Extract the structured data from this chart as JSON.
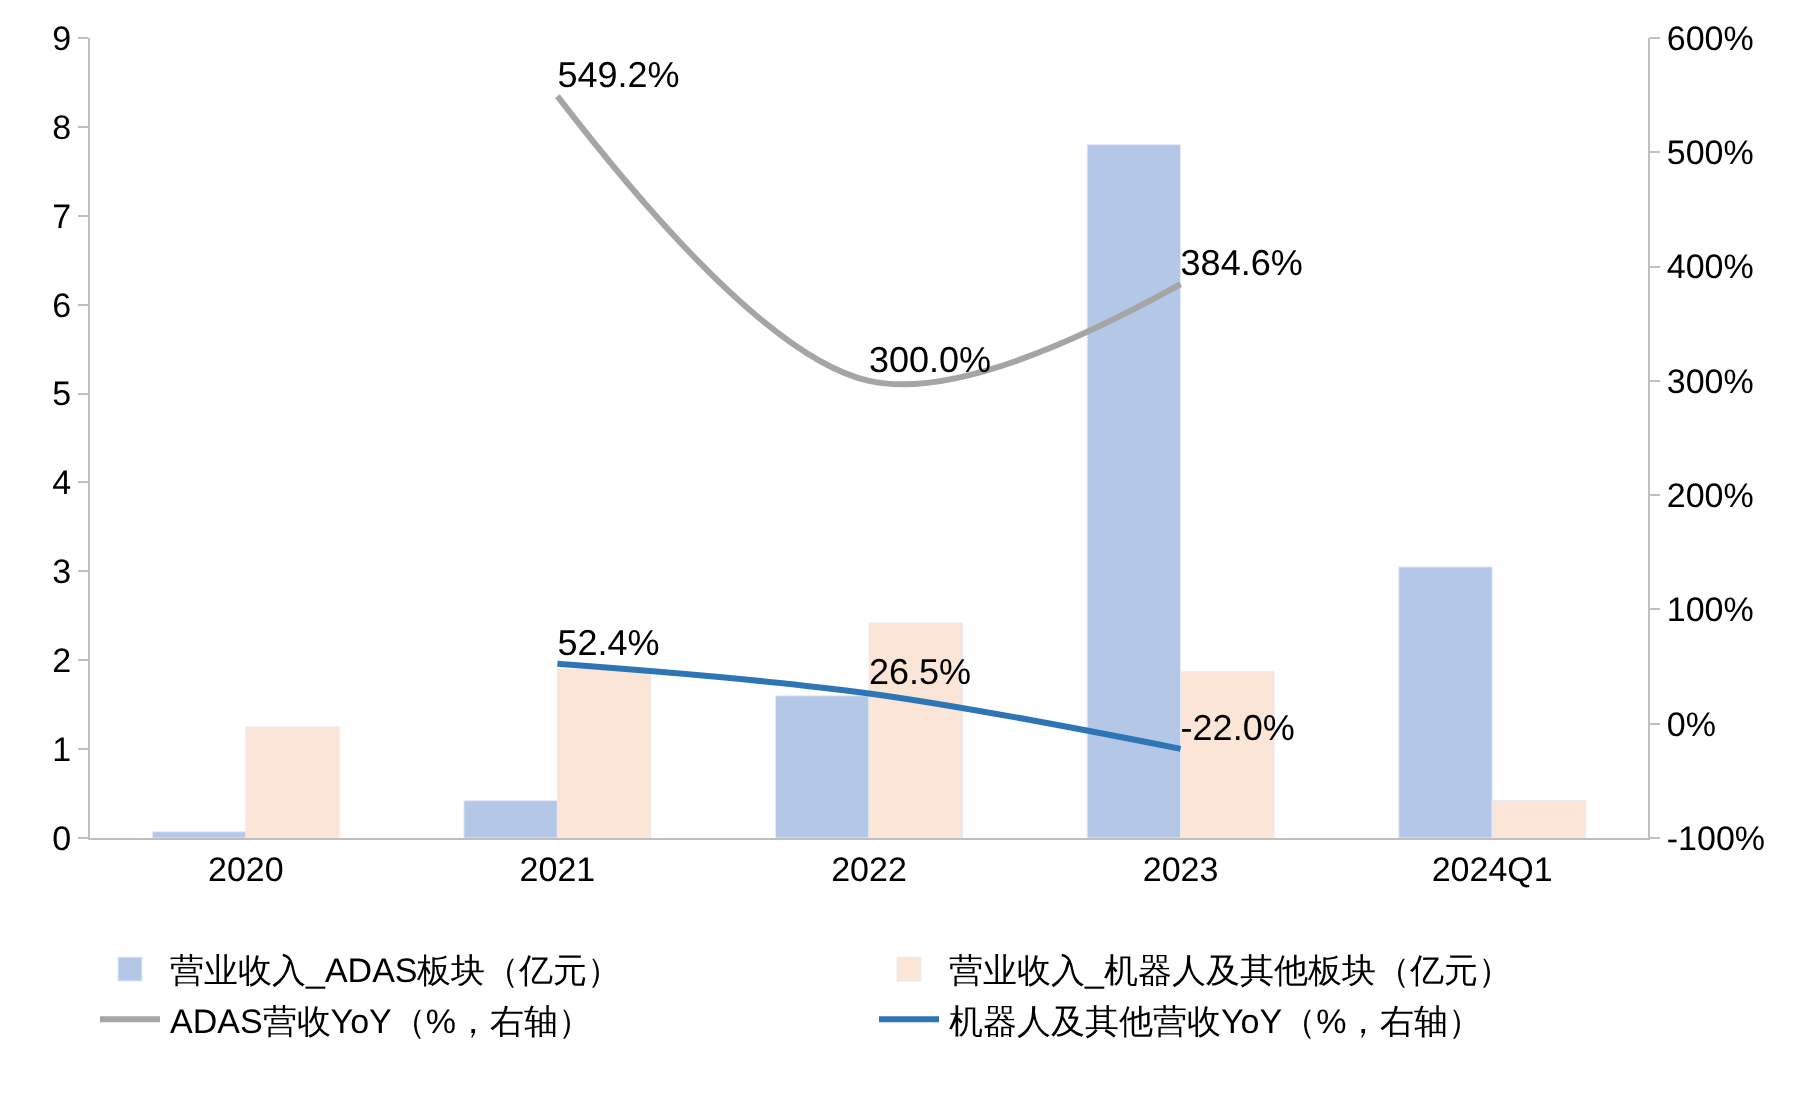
{
  "chart_data": {
    "type": "bar",
    "categories": [
      "2020",
      "2021",
      "2022",
      "2023",
      "2024Q1"
    ],
    "series": [
      {
        "name": "营业收入_ADAS板块（亿元）",
        "color": "#b4c7e7",
        "values": [
          0.07,
          0.42,
          1.6,
          7.8,
          3.05
        ]
      },
      {
        "name": "营业收入_机器人及其他板块（亿元）",
        "color": "#fbe5d6",
        "values": [
          1.25,
          1.9,
          2.42,
          1.87,
          0.42
        ]
      },
      {
        "name": "ADAS营收YoY（%，右轴）",
        "type": "line",
        "axis": "y2",
        "color": "#a5a5a5",
        "values": [
          null,
          549.2,
          300.0,
          384.6,
          null
        ],
        "value_labels": [
          null,
          "549.2%",
          "300.0%",
          "384.6%",
          null
        ]
      },
      {
        "name": "机器人及其他营收YoY（%，右轴）",
        "type": "line",
        "axis": "y2",
        "color": "#2e75b6",
        "values": [
          null,
          52.4,
          26.5,
          -22.0,
          null
        ],
        "value_labels": [
          null,
          "52.4%",
          "26.5%",
          "-22.0%",
          null
        ]
      }
    ],
    "ylim": [
      0,
      9
    ],
    "yticks": [
      0,
      1,
      2,
      3,
      4,
      5,
      6,
      7,
      8,
      9
    ],
    "y2lim": [
      -100,
      600
    ],
    "y2ticks": [
      {
        "value": -100,
        "label": "-100%"
      },
      {
        "value": 0,
        "label": "0%"
      },
      {
        "value": 100,
        "label": "100%"
      },
      {
        "value": 200,
        "label": "200%"
      },
      {
        "value": 300,
        "label": "300%"
      },
      {
        "value": 400,
        "label": "400%"
      },
      {
        "value": 500,
        "label": "500%"
      },
      {
        "value": 600,
        "label": "600%"
      }
    ],
    "legend": "bottom",
    "marker": "none",
    "line_style": "solid"
  }
}
